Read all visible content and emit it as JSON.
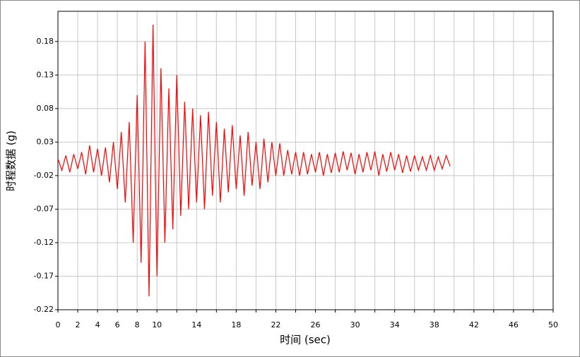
{
  "chart_data": {
    "type": "line",
    "xlabel": "时间 (sec)",
    "ylabel": "时程数据 (g)",
    "x": [
      0,
      0.4,
      0.8,
      1.2,
      1.6,
      2.0,
      2.4,
      2.8,
      3.2,
      3.6,
      4.0,
      4.4,
      4.8,
      5.2,
      5.6,
      6.0,
      6.4,
      6.8,
      7.2,
      7.6,
      8.0,
      8.4,
      8.8,
      9.2,
      9.6,
      10.0,
      10.4,
      10.8,
      11.2,
      11.6,
      12.0,
      12.4,
      12.8,
      13.2,
      13.6,
      14.0,
      14.4,
      14.8,
      15.2,
      15.6,
      16.0,
      16.4,
      16.8,
      17.2,
      17.6,
      18.0,
      18.4,
      18.8,
      19.2,
      19.6,
      20.0,
      20.4,
      20.8,
      21.2,
      21.6,
      22.0,
      22.4,
      22.8,
      23.2,
      23.6,
      24.0,
      24.4,
      24.8,
      25.2,
      25.6,
      26.0,
      26.4,
      26.8,
      27.2,
      27.6,
      28.0,
      28.4,
      28.8,
      29.2,
      29.6,
      30.0,
      30.4,
      30.8,
      31.2,
      31.6,
      32.0,
      32.4,
      32.8,
      33.2,
      33.6,
      34.0,
      34.4,
      34.8,
      35.2,
      35.6,
      36.0,
      36.4,
      36.8,
      37.2,
      37.6,
      38.0,
      38.4,
      38.8,
      39.2,
      39.6
    ],
    "series": [
      {
        "color": "#ff0000",
        "values": [
          0.005,
          -0.012,
          0.01,
          -0.015,
          0.012,
          -0.01,
          0.015,
          -0.018,
          0.025,
          -0.015,
          0.02,
          -0.02,
          0.022,
          -0.03,
          0.03,
          -0.04,
          0.045,
          -0.06,
          0.06,
          -0.12,
          0.1,
          -0.15,
          0.18,
          -0.2,
          0.205,
          -0.17,
          0.14,
          -0.12,
          0.11,
          -0.1,
          0.13,
          -0.08,
          0.09,
          -0.07,
          0.08,
          -0.06,
          0.07,
          -0.07,
          0.075,
          -0.05,
          0.06,
          -0.06,
          0.05,
          -0.045,
          0.055,
          -0.04,
          0.04,
          -0.05,
          0.045,
          -0.035,
          0.03,
          -0.04,
          0.035,
          -0.03,
          0.03,
          -0.02,
          0.028,
          -0.02,
          0.018,
          -0.018,
          0.015,
          -0.02,
          0.015,
          -0.018,
          0.012,
          -0.015,
          0.015,
          -0.02,
          0.012,
          -0.016,
          0.014,
          -0.015,
          0.016,
          -0.012,
          0.014,
          -0.018,
          0.012,
          -0.015,
          0.015,
          -0.012,
          0.016,
          -0.02,
          0.012,
          -0.014,
          0.015,
          -0.012,
          0.012,
          -0.016,
          0.01,
          -0.014,
          0.01,
          -0.012,
          0.008,
          -0.012,
          0.01,
          -0.012,
          0.008,
          -0.01,
          0.01,
          -0.006
        ]
      }
    ],
    "xlim": [
      0,
      50
    ],
    "xticks": [
      0,
      2,
      4,
      6,
      8,
      10,
      14,
      18,
      22,
      26,
      30,
      34,
      38,
      42,
      46,
      50
    ],
    "x_minor_gridlines": [
      12,
      16,
      20,
      24,
      28,
      32,
      36,
      40,
      44,
      48
    ],
    "ylim": [
      -0.22,
      0.225
    ],
    "yticks": [
      -0.22,
      -0.17,
      -0.12,
      -0.07,
      -0.02,
      0.03,
      0.08,
      0.13,
      0.18
    ],
    "grid": true
  }
}
